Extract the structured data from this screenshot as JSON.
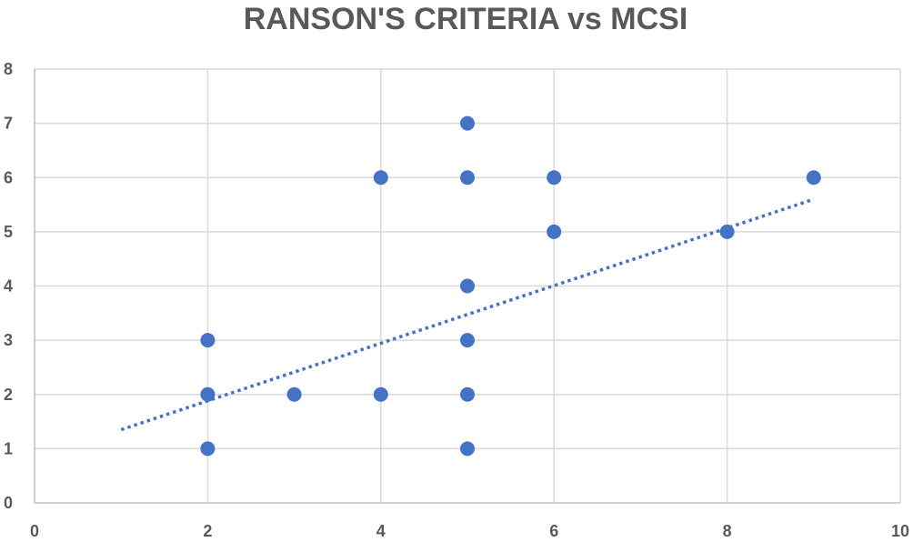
{
  "chart_data": {
    "type": "scatter",
    "title": "RANSON'S CRITERIA vs MCSI",
    "xlabel": "",
    "ylabel": "",
    "xlim": [
      0,
      10
    ],
    "ylim": [
      0,
      8
    ],
    "x_ticks": [
      "0",
      "2",
      "4",
      "6",
      "8",
      "10"
    ],
    "y_ticks": [
      "0",
      "1",
      "2",
      "3",
      "4",
      "5",
      "6",
      "7",
      "8"
    ],
    "grid": true,
    "legend": "none",
    "marker_color": "#4472c4",
    "points": [
      {
        "x": 2,
        "y": 1
      },
      {
        "x": 2,
        "y": 2
      },
      {
        "x": 2,
        "y": 3
      },
      {
        "x": 3,
        "y": 2
      },
      {
        "x": 4,
        "y": 2
      },
      {
        "x": 4,
        "y": 6
      },
      {
        "x": 5,
        "y": 1
      },
      {
        "x": 5,
        "y": 2
      },
      {
        "x": 5,
        "y": 3
      },
      {
        "x": 5,
        "y": 4
      },
      {
        "x": 5,
        "y": 6
      },
      {
        "x": 5,
        "y": 7
      },
      {
        "x": 6,
        "y": 5
      },
      {
        "x": 6,
        "y": 6
      },
      {
        "x": 8,
        "y": 5
      },
      {
        "x": 9,
        "y": 6
      }
    ],
    "trendline": {
      "type": "linear",
      "style": "dotted",
      "color": "#4472c4",
      "x": [
        1,
        9
      ],
      "y": [
        1.35,
        5.6
      ]
    }
  }
}
